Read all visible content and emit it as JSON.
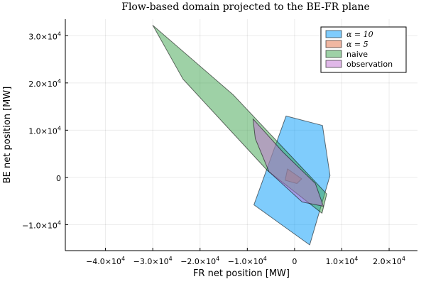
{
  "chart_data": {
    "type": "area",
    "title": "Flow-based domain projected to the BE-FR plane",
    "xlabel": "FR net position [MW]",
    "ylabel": "BE net position [MW]",
    "xlim": [
      -48500,
      26000
    ],
    "ylim": [
      -15500,
      33500
    ],
    "xticks": [
      {
        "value": -40000,
        "mantissa": "−4.0×10",
        "exp": "4"
      },
      {
        "value": -30000,
        "mantissa": "−3.0×10",
        "exp": "4"
      },
      {
        "value": -20000,
        "mantissa": "−2.0×10",
        "exp": "4"
      },
      {
        "value": -10000,
        "mantissa": "−1.0×10",
        "exp": "4"
      },
      {
        "value": 0,
        "mantissa": "0",
        "exp": ""
      },
      {
        "value": 10000,
        "mantissa": "1.0×10",
        "exp": "4"
      },
      {
        "value": 20000,
        "mantissa": "2.0×10",
        "exp": "4"
      }
    ],
    "yticks": [
      {
        "value": -10000,
        "mantissa": "−1.0×10",
        "exp": "4"
      },
      {
        "value": 0,
        "mantissa": "0",
        "exp": ""
      },
      {
        "value": 10000,
        "mantissa": "1.0×10",
        "exp": "4"
      },
      {
        "value": 20000,
        "mantissa": "2.0×10",
        "exp": "4"
      },
      {
        "value": 30000,
        "mantissa": "3.0×10",
        "exp": "4"
      }
    ],
    "grid": true,
    "legend_position": "top-right",
    "series": [
      {
        "name": "α = 10",
        "label_italic": true,
        "color": "#009AFA",
        "points": [
          [
            -1800,
            13000
          ],
          [
            5900,
            11000
          ],
          [
            7500,
            400
          ],
          [
            3200,
            -14300
          ],
          [
            -8600,
            -5800
          ]
        ]
      },
      {
        "name": "α = 5",
        "label_italic": true,
        "color": "#E26F46",
        "points": [
          [
            -1500,
            1800
          ],
          [
            1500,
            -300
          ],
          [
            500,
            -1300
          ],
          [
            -2000,
            -600
          ]
        ]
      },
      {
        "name": "naive",
        "color": "#3DA44D",
        "points": [
          [
            -30000,
            32200
          ],
          [
            -13000,
            17500
          ],
          [
            6800,
            -3500
          ],
          [
            5800,
            -7600
          ],
          [
            -5800,
            1500
          ],
          [
            -23600,
            20800
          ]
        ]
      },
      {
        "name": "observation",
        "color": "#C271D2",
        "points": [
          [
            -8800,
            12400
          ],
          [
            -2500,
            5400
          ],
          [
            4400,
            -1300
          ],
          [
            6100,
            -6100
          ],
          [
            1600,
            -5200
          ],
          [
            -5400,
            1200
          ],
          [
            -8300,
            8200
          ]
        ]
      }
    ]
  }
}
